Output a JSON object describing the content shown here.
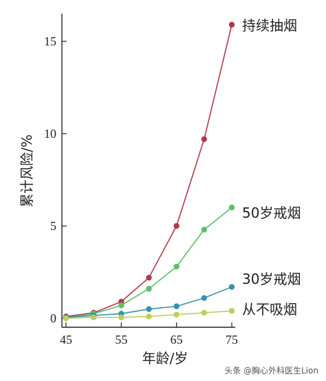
{
  "chart_data": {
    "type": "line",
    "xlabel": "年龄/岁",
    "ylabel": "累计风险/%",
    "x": [
      45,
      50,
      55,
      60,
      65,
      70,
      75
    ],
    "xlim": [
      45,
      75
    ],
    "ylim": [
      0,
      16
    ],
    "x_ticks": [
      45,
      55,
      65,
      75
    ],
    "y_ticks": [
      0,
      5,
      10,
      15
    ],
    "grid": false,
    "series": [
      {
        "name": "持续抽烟",
        "color": "#b03a48",
        "values": [
          0.1,
          0.3,
          0.9,
          2.2,
          5.0,
          9.7,
          15.9
        ]
      },
      {
        "name": "50岁戒烟",
        "color": "#5cbf6a",
        "values": [
          0.05,
          0.25,
          0.7,
          1.6,
          2.8,
          4.8,
          6.0
        ]
      },
      {
        "name": "30岁戒烟",
        "color": "#3b8fb0",
        "values": [
          0.05,
          0.15,
          0.25,
          0.5,
          0.65,
          1.1,
          1.7
        ]
      },
      {
        "name": "从不吸烟",
        "color": "#bccf5a",
        "values": [
          0.0,
          0.05,
          0.05,
          0.1,
          0.2,
          0.3,
          0.4
        ]
      }
    ]
  },
  "watermark": "头条 @胸心外科医生Lion"
}
